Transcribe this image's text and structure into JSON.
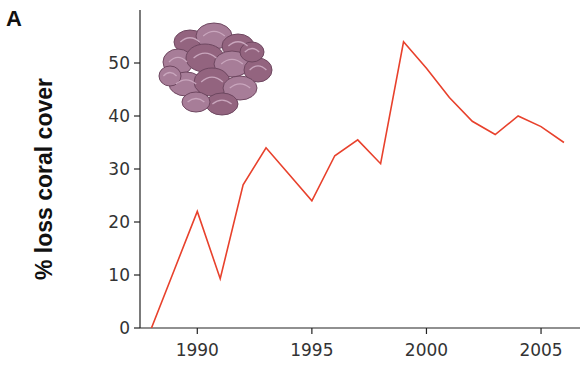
{
  "chart_data": {
    "type": "line",
    "title": "A",
    "y_label": "% loss coral cover",
    "x": [
      1988,
      1989,
      1990,
      1991,
      1992,
      1993,
      1994,
      1995,
      1996,
      1997,
      1998,
      1999,
      2000,
      2001,
      2002,
      2003,
      2004,
      2005,
      2006
    ],
    "values": [
      0,
      11,
      22,
      9.3,
      27,
      34,
      29,
      24,
      32.5,
      35.5,
      31,
      54,
      49,
      43.5,
      39,
      36.5,
      40,
      38,
      35
    ],
    "color": "#e8412c",
    "xlim": [
      1987.5,
      2006.7
    ],
    "xticks": [
      1990,
      1995,
      2000,
      2005
    ],
    "ylim": [
      0,
      60
    ],
    "yticks": [
      0,
      10,
      20,
      30,
      40,
      50
    ],
    "grid": false
  }
}
